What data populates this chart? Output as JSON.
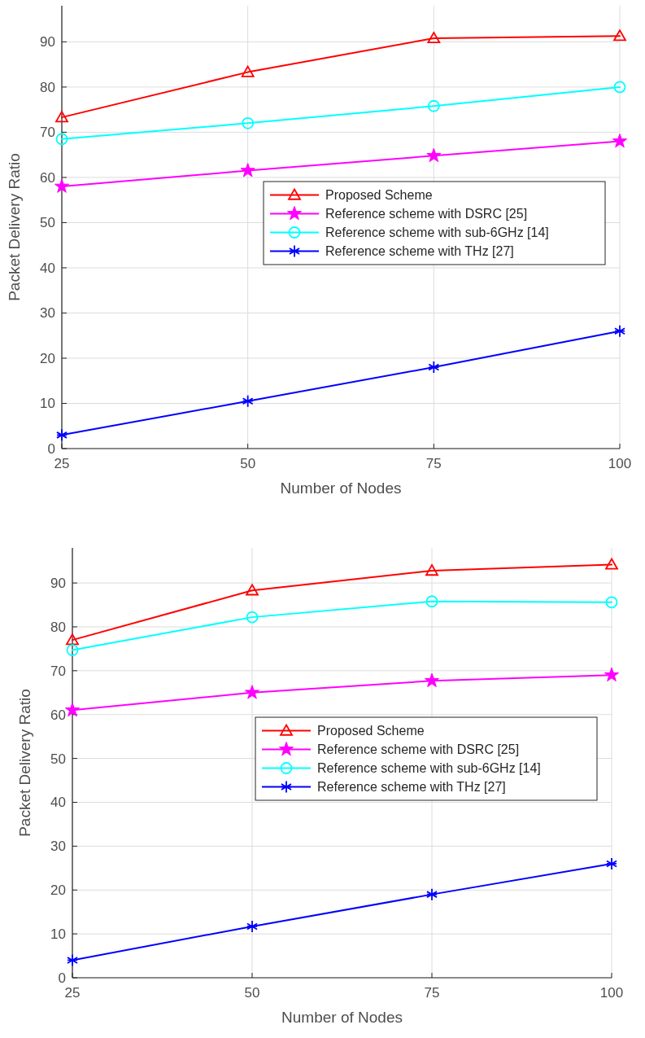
{
  "chart_data": [
    {
      "type": "line",
      "xlabel": "Number of Nodes",
      "ylabel": "Packet Delivery Ratio",
      "x": [
        25,
        50,
        75,
        100
      ],
      "xlim": [
        25,
        100
      ],
      "xticks": [
        25,
        50,
        75,
        100
      ],
      "ylim": [
        0,
        98
      ],
      "yticks": [
        0,
        10,
        20,
        30,
        40,
        50,
        60,
        70,
        80,
        90
      ],
      "grid": true,
      "legend": "right",
      "series": [
        {
          "name": "Proposed Scheme",
          "color": "#ff0000",
          "marker": "triangle",
          "values": [
            73.3,
            83.3,
            90.8,
            91.3
          ]
        },
        {
          "name": "Reference scheme with DSRC [25]",
          "color": "#ff00ff",
          "marker": "star",
          "values": [
            58,
            61.5,
            64.8,
            68
          ]
        },
        {
          "name": "Reference scheme with sub-6GHz [14]",
          "color": "#00ffff",
          "marker": "circle",
          "values": [
            68.5,
            72,
            75.8,
            80
          ]
        },
        {
          "name": "Reference scheme with THz [27]",
          "color": "#0000ff",
          "marker": "cross",
          "values": [
            3,
            10.5,
            18,
            26
          ]
        }
      ]
    },
    {
      "type": "line",
      "xlabel": "Number of Nodes",
      "ylabel": "Packet Delivery Ratio",
      "x": [
        25,
        50,
        75,
        100
      ],
      "xlim": [
        25,
        100
      ],
      "xticks": [
        25,
        50,
        75,
        100
      ],
      "ylim": [
        0,
        98
      ],
      "yticks": [
        0,
        10,
        20,
        30,
        40,
        50,
        60,
        70,
        80,
        90
      ],
      "grid": true,
      "legend": "right",
      "series": [
        {
          "name": "Proposed Scheme",
          "color": "#ff0000",
          "marker": "triangle",
          "values": [
            77,
            88.3,
            92.8,
            94.2
          ]
        },
        {
          "name": "Reference scheme with DSRC [25]",
          "color": "#ff00ff",
          "marker": "star",
          "values": [
            61,
            65,
            67.7,
            69
          ]
        },
        {
          "name": "Reference scheme with sub-6GHz [14]",
          "color": "#00ffff",
          "marker": "circle",
          "values": [
            74.7,
            82.2,
            85.8,
            85.6
          ]
        },
        {
          "name": "Reference scheme with THz [27]",
          "color": "#0000ff",
          "marker": "cross",
          "values": [
            4,
            11.7,
            19,
            26
          ]
        }
      ]
    }
  ]
}
